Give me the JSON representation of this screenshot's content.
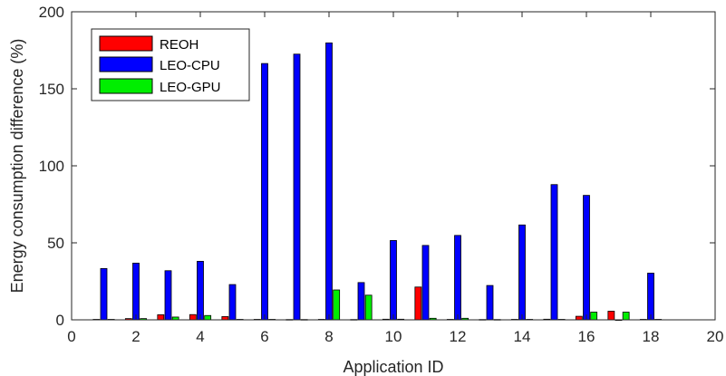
{
  "chart_data": {
    "type": "bar",
    "x": [
      1,
      2,
      3,
      4,
      5,
      6,
      7,
      8,
      9,
      10,
      11,
      12,
      13,
      14,
      15,
      16,
      17,
      18
    ],
    "series": [
      {
        "name": "REOH",
        "color": "#ff0000",
        "values": [
          0.3,
          0.8,
          3.3,
          3.4,
          2.1,
          0.3,
          0.2,
          0.3,
          0.2,
          0.4,
          21.3,
          0.3,
          0.2,
          0.3,
          0.4,
          2.3,
          5.6,
          0.3
        ]
      },
      {
        "name": "LEO-CPU",
        "color": "#0000ff",
        "values": [
          33.3,
          36.8,
          31.9,
          38.0,
          22.9,
          166.4,
          172.5,
          179.8,
          24.2,
          51.5,
          48.3,
          54.8,
          22.3,
          61.6,
          87.8,
          80.8,
          0.0,
          30.3
        ]
      },
      {
        "name": "LEO-GPU",
        "color": "#00ee00",
        "values": [
          0.3,
          0.8,
          1.8,
          2.8,
          0.3,
          0.3,
          0.2,
          19.4,
          16.0,
          0.4,
          1.0,
          1.0,
          0.2,
          0.3,
          0.3,
          5.0,
          5.0,
          0.3
        ]
      }
    ],
    "xlabel": "Application ID",
    "ylabel": "Energy consumption difference (%)",
    "xlim": [
      0,
      20
    ],
    "ylim": [
      0,
      200
    ],
    "xticks": [
      "0",
      "2",
      "4",
      "6",
      "8",
      "10",
      "12",
      "14",
      "16",
      "18",
      "20"
    ],
    "yticks": [
      "0",
      "50",
      "100",
      "150",
      "200"
    ],
    "grid": false,
    "legend_position": "top-left"
  }
}
